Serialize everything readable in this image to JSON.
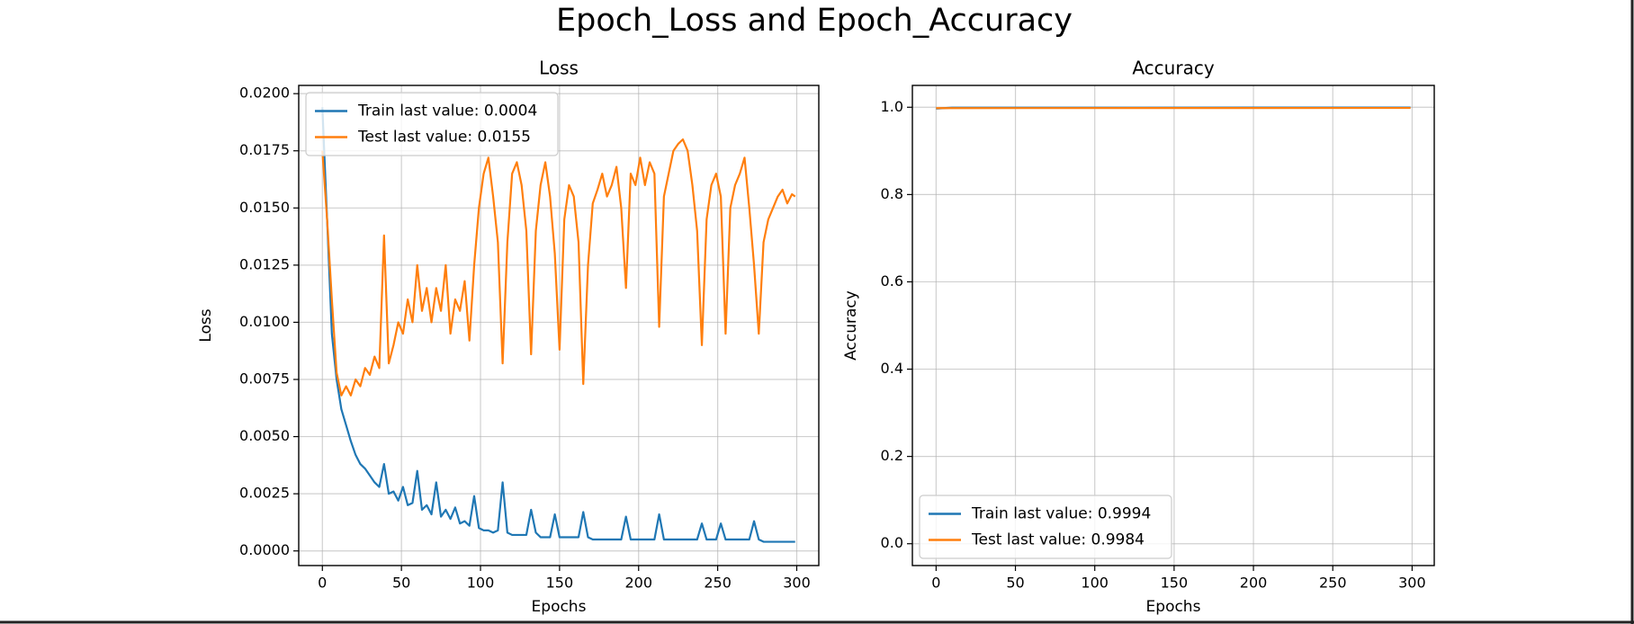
{
  "title": "Epoch_Loss and Epoch_Accuracy",
  "chart_data": [
    {
      "type": "line",
      "title": "Loss",
      "x_label": "Epochs",
      "y_label": "Loss",
      "x": [
        0,
        3,
        6,
        9,
        12,
        15,
        18,
        21,
        24,
        27,
        30,
        33,
        36,
        39,
        42,
        45,
        48,
        51,
        54,
        57,
        60,
        63,
        66,
        69,
        72,
        75,
        78,
        81,
        84,
        87,
        90,
        93,
        96,
        99,
        102,
        105,
        108,
        111,
        114,
        117,
        120,
        123,
        126,
        129,
        132,
        135,
        138,
        141,
        144,
        147,
        150,
        153,
        156,
        159,
        162,
        165,
        168,
        171,
        174,
        177,
        180,
        183,
        186,
        189,
        192,
        195,
        198,
        201,
        204,
        207,
        210,
        213,
        216,
        219,
        222,
        225,
        228,
        231,
        234,
        237,
        240,
        243,
        246,
        249,
        252,
        255,
        258,
        261,
        264,
        267,
        270,
        273,
        276,
        279,
        282,
        285,
        288,
        291,
        294,
        297,
        299
      ],
      "series": [
        {
          "name": "Train last value: 0.0004",
          "color": "#1f77b4",
          "values": [
            0.0194,
            0.0145,
            0.0095,
            0.0075,
            0.0062,
            0.0055,
            0.0048,
            0.0042,
            0.0038,
            0.0036,
            0.0033,
            0.003,
            0.0028,
            0.0038,
            0.0025,
            0.0026,
            0.0022,
            0.0028,
            0.002,
            0.0021,
            0.0035,
            0.0018,
            0.002,
            0.0016,
            0.003,
            0.0015,
            0.0018,
            0.0014,
            0.0019,
            0.0012,
            0.0013,
            0.0011,
            0.0024,
            0.001,
            0.0009,
            0.0009,
            0.0008,
            0.0009,
            0.003,
            0.0008,
            0.0007,
            0.0007,
            0.0007,
            0.0007,
            0.0018,
            0.0008,
            0.0006,
            0.0006,
            0.0006,
            0.0016,
            0.0006,
            0.0006,
            0.0006,
            0.0006,
            0.0006,
            0.0017,
            0.0006,
            0.0005,
            0.0005,
            0.0005,
            0.0005,
            0.0005,
            0.0005,
            0.0005,
            0.0015,
            0.0005,
            0.0005,
            0.0005,
            0.0005,
            0.0005,
            0.0005,
            0.0016,
            0.0005,
            0.0005,
            0.0005,
            0.0005,
            0.0005,
            0.0005,
            0.0005,
            0.0005,
            0.0012,
            0.0005,
            0.0005,
            0.0005,
            0.0012,
            0.0005,
            0.0005,
            0.0005,
            0.0005,
            0.0005,
            0.0005,
            0.0013,
            0.0005,
            0.0004,
            0.0004,
            0.0004,
            0.0004,
            0.0004,
            0.0004,
            0.0004,
            0.0004
          ]
        },
        {
          "name": "Test last value: 0.0155",
          "color": "#ff7f0e",
          "values": [
            0.0175,
            0.0145,
            0.011,
            0.0078,
            0.0068,
            0.0072,
            0.0068,
            0.0075,
            0.0072,
            0.008,
            0.0077,
            0.0085,
            0.008,
            0.0138,
            0.0082,
            0.009,
            0.01,
            0.0095,
            0.011,
            0.01,
            0.0125,
            0.0105,
            0.0115,
            0.01,
            0.0115,
            0.0105,
            0.0125,
            0.0095,
            0.011,
            0.0105,
            0.0118,
            0.0092,
            0.0125,
            0.015,
            0.0165,
            0.0172,
            0.0155,
            0.0135,
            0.0082,
            0.0135,
            0.0165,
            0.017,
            0.016,
            0.014,
            0.0086,
            0.014,
            0.016,
            0.017,
            0.0155,
            0.013,
            0.0088,
            0.0145,
            0.016,
            0.0155,
            0.0135,
            0.0073,
            0.0125,
            0.0152,
            0.0158,
            0.0165,
            0.0155,
            0.016,
            0.0168,
            0.015,
            0.0115,
            0.0165,
            0.016,
            0.0172,
            0.016,
            0.017,
            0.0165,
            0.0098,
            0.0155,
            0.0165,
            0.0175,
            0.0178,
            0.018,
            0.0175,
            0.016,
            0.014,
            0.009,
            0.0145,
            0.016,
            0.0165,
            0.0155,
            0.0095,
            0.015,
            0.016,
            0.0165,
            0.0172,
            0.015,
            0.0125,
            0.0095,
            0.0135,
            0.0145,
            0.015,
            0.0155,
            0.0158,
            0.0152,
            0.0156,
            0.0155
          ]
        }
      ],
      "xlim": [
        -14.95,
        313.95
      ],
      "xticks": [
        0,
        50,
        100,
        150,
        200,
        250,
        300
      ],
      "ylim": [
        -0.00064,
        0.02036
      ],
      "yticks": [
        {
          "value": 0,
          "label": "0.0000"
        },
        {
          "value": 0.0025,
          "label": "0.0025"
        },
        {
          "value": 0.005,
          "label": "0.0050"
        },
        {
          "value": 0.0075,
          "label": "0.0075"
        },
        {
          "value": 0.01,
          "label": "0.0100"
        },
        {
          "value": 0.0125,
          "label": "0.0125"
        },
        {
          "value": 0.015,
          "label": "0.0150"
        },
        {
          "value": 0.0175,
          "label": "0.0175"
        },
        {
          "value": 0.02,
          "label": "0.0200"
        }
      ],
      "grid": true,
      "legend": "upper-left"
    },
    {
      "type": "line",
      "title": "Accuracy",
      "x_label": "Epochs",
      "y_label": "Accuracy",
      "x": [
        0,
        10,
        299
      ],
      "series": [
        {
          "name": "Train last value: 0.9994",
          "color": "#1f77b4",
          "values": [
            0.997,
            0.999,
            0.9994
          ]
        },
        {
          "name": "Test last value: 0.9984",
          "color": "#ff7f0e",
          "values": [
            0.998,
            0.998,
            0.9984
          ]
        }
      ],
      "xlim": [
        -14.95,
        313.95
      ],
      "xticks": [
        0,
        50,
        100,
        150,
        200,
        250,
        300
      ],
      "ylim": [
        -0.05,
        1.05
      ],
      "yticks": [
        {
          "value": 0,
          "label": "0.0"
        },
        0.2,
        0.4,
        0.6,
        0.8,
        {
          "value": 1,
          "label": "1.0"
        }
      ],
      "grid": true,
      "legend": "lower-left"
    }
  ]
}
